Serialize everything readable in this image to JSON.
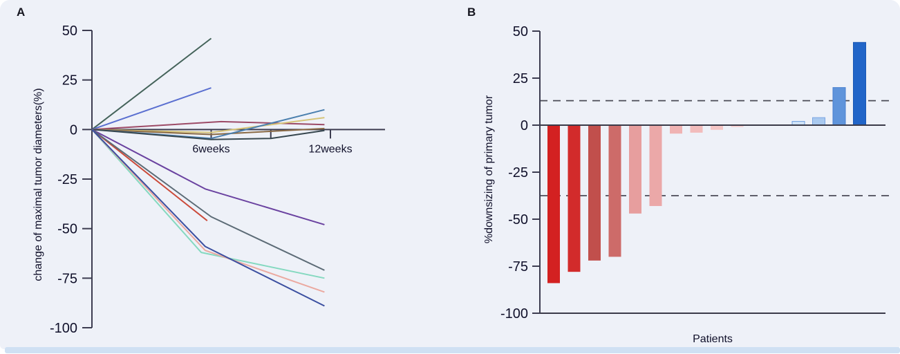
{
  "page": {
    "background_color": "#eef1f8",
    "footer_strip_color": "#cfe0f3"
  },
  "panels": {
    "a_label": "A",
    "b_label": "B"
  },
  "chart_data": [
    {
      "type": "line",
      "panel": "A",
      "title": "",
      "ylabel": "change of maximal tumor diameters(%)",
      "xlabel": "",
      "ylim": [
        -100,
        50
      ],
      "yticks": [
        50,
        25,
        0,
        -25,
        -50,
        -75,
        -100
      ],
      "xlim_weeks": [
        0,
        14.7
      ],
      "xticks": [
        {
          "week": 6,
          "label": "6weeks"
        },
        {
          "week": 9,
          "label": ""
        },
        {
          "week": 12,
          "label": "12weeks"
        }
      ],
      "grid": false,
      "legend": "none",
      "series": [
        {
          "name": "patient-line-1",
          "color": "#44635a",
          "points": [
            [
              0,
              0
            ],
            [
              6,
              46
            ]
          ]
        },
        {
          "name": "patient-line-2",
          "color": "#5a6fd0",
          "points": [
            [
              0,
              0
            ],
            [
              6,
              21
            ]
          ]
        },
        {
          "name": "patient-line-3",
          "color": "#9c4a66",
          "points": [
            [
              0,
              0
            ],
            [
              6.5,
              4
            ],
            [
              11.7,
              2.5
            ]
          ]
        },
        {
          "name": "patient-line-4",
          "color": "#d6c478",
          "points": [
            [
              0,
              0
            ],
            [
              6,
              -1.5
            ],
            [
              11.7,
              6
            ]
          ]
        },
        {
          "name": "patient-line-5",
          "color": "#8a6a45",
          "points": [
            [
              0,
              0
            ],
            [
              6,
              -2.5
            ],
            [
              11.7,
              0.5
            ]
          ]
        },
        {
          "name": "patient-line-6",
          "color": "#4a7fae",
          "points": [
            [
              0,
              0
            ],
            [
              6,
              -4.5
            ],
            [
              11.7,
              10
            ]
          ]
        },
        {
          "name": "patient-line-7",
          "color": "#37474f",
          "points": [
            [
              0,
              0
            ],
            [
              6,
              -5
            ],
            [
              9,
              -4.5
            ],
            [
              11.7,
              -0.5
            ]
          ]
        },
        {
          "name": "patient-line-8",
          "color": "#cb4a3a",
          "points": [
            [
              0,
              0
            ],
            [
              5.8,
              -46
            ]
          ]
        },
        {
          "name": "patient-line-9",
          "color": "#6a42a0",
          "points": [
            [
              0,
              0
            ],
            [
              5.7,
              -30
            ],
            [
              11.7,
              -48
            ]
          ]
        },
        {
          "name": "patient-line-10",
          "color": "#5c6b76",
          "points": [
            [
              0,
              0
            ],
            [
              6,
              -44
            ],
            [
              11.7,
              -71
            ]
          ]
        },
        {
          "name": "patient-line-11",
          "color": "#85d9c0",
          "points": [
            [
              0,
              0
            ],
            [
              5.5,
              -62
            ],
            [
              11.7,
              -75
            ]
          ]
        },
        {
          "name": "patient-line-12",
          "color": "#eba9a0",
          "points": [
            [
              0,
              0
            ],
            [
              5.7,
              -61
            ],
            [
              11.7,
              -82
            ]
          ]
        },
        {
          "name": "patient-line-13",
          "color": "#3b4fa0",
          "points": [
            [
              0,
              0
            ],
            [
              5.7,
              -59
            ],
            [
              11.7,
              -89
            ]
          ]
        }
      ]
    },
    {
      "type": "bar",
      "panel": "B",
      "title": "",
      "ylabel": "%downsizing of primary tumor",
      "xlabel": "Patients",
      "ylim": [
        -100,
        50
      ],
      "yticks": [
        50,
        25,
        0,
        -25,
        -50,
        -75,
        -100
      ],
      "reference_dashed_lines": [
        13,
        -37.5
      ],
      "grid": false,
      "legend": "none",
      "bars": [
        {
          "value": -84,
          "color": "#d32121"
        },
        {
          "value": -78,
          "color": "#d22b2b"
        },
        {
          "value": -72,
          "color": "#c14f4c"
        },
        {
          "value": -70,
          "color": "#cd6b69"
        },
        {
          "value": -47,
          "color": "#e79e9e"
        },
        {
          "value": -43,
          "color": "#eba8a8"
        },
        {
          "value": -4.5,
          "color": "#f0b3b3"
        },
        {
          "value": -4,
          "color": "#f2bcbc"
        },
        {
          "value": -2.5,
          "color": "#f5c6c6"
        },
        {
          "value": -1,
          "color": "#f7d0d0"
        },
        {
          "value": 0,
          "color": "#f7d0d0"
        },
        {
          "value": 0,
          "color": "#dbe9f8"
        },
        {
          "value": 2,
          "color": "#cfe2f7",
          "border": "#6f9fdf"
        },
        {
          "value": 4,
          "color": "#a9c9ef",
          "border": "#7aa5e2"
        },
        {
          "value": 20,
          "color": "#5f94db",
          "border": "#4a80cf"
        },
        {
          "value": 44,
          "color": "#2165c8",
          "border": "#1b58b4"
        }
      ]
    }
  ]
}
